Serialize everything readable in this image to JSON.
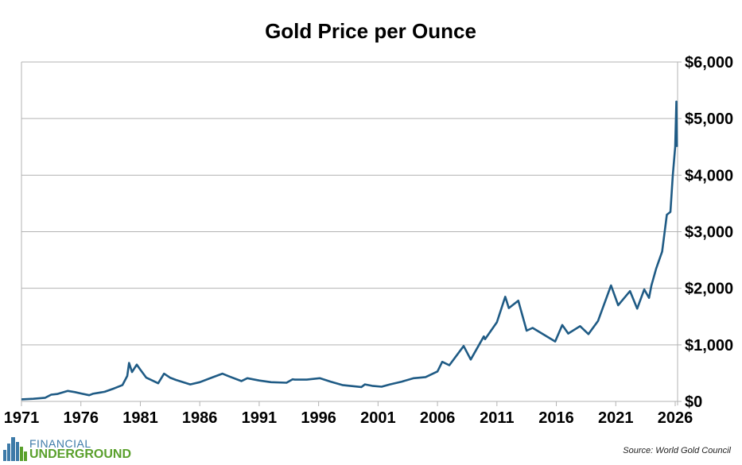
{
  "chart_data": {
    "type": "line",
    "title": "Gold Price per Ounce",
    "xlabel": "",
    "ylabel": "",
    "xlim": [
      1971,
      2026
    ],
    "ylim": [
      0,
      6000
    ],
    "x_ticks": [
      "1971",
      "1976",
      "1981",
      "1986",
      "1991",
      "1996",
      "2001",
      "2006",
      "2011",
      "2016",
      "2021",
      "2026"
    ],
    "y_ticks": [
      "$0",
      "$1,000",
      "$2,000",
      "$3,000",
      "$4,000",
      "$5,000",
      "$6,000"
    ],
    "y_axis_side": "right",
    "grid": "horizontal",
    "legend": "none",
    "line_color": "#1f5b85",
    "series": [
      {
        "x": [
          1971.0,
          1972.0,
          1973.0,
          1973.5,
          1974.0,
          1974.9,
          1975.5,
          1976.0,
          1976.7,
          1977.0,
          1978.0,
          1978.8,
          1979.5,
          1979.9,
          1980.05,
          1980.3,
          1980.7,
          1981.0,
          1981.5,
          1982.5,
          1983.0,
          1983.5,
          1984.0,
          1985.2,
          1986.0,
          1987.0,
          1987.9,
          1988.5,
          1989.5,
          1990.0,
          1991.0,
          1992.0,
          1993.3,
          1993.8,
          1994.0,
          1995.0,
          1996.1,
          1997.0,
          1998.0,
          1999.6,
          1999.9,
          2000.5,
          2001.3,
          2002.0,
          2003.0,
          2004.0,
          2005.0,
          2006.0,
          2006.4,
          2007.0,
          2008.2,
          2008.8,
          2009.9,
          2010.0,
          2011.0,
          2011.7,
          2012.0,
          2012.8,
          2013.5,
          2014.0,
          2015.9,
          2016.5,
          2017.0,
          2018.0,
          2018.7,
          2019.5,
          2020.6,
          2021.2,
          2021.6,
          2022.2,
          2022.8,
          2023.4,
          2023.8,
          2024.0,
          2024.4,
          2024.9,
          2025.3,
          2025.6,
          2025.8,
          2026.0,
          2026.1,
          2026.15
        ],
        "y": [
          37,
          46,
          65,
          120,
          130,
          185,
          165,
          140,
          110,
          135,
          170,
          230,
          290,
          450,
          680,
          520,
          650,
          560,
          420,
          320,
          490,
          420,
          380,
          300,
          340,
          420,
          490,
          440,
          360,
          410,
          370,
          340,
          330,
          390,
          385,
          385,
          410,
          350,
          290,
          255,
          300,
          275,
          260,
          300,
          350,
          410,
          430,
          530,
          700,
          640,
          980,
          740,
          1150,
          1100,
          1400,
          1850,
          1650,
          1780,
          1250,
          1300,
          1060,
          1350,
          1200,
          1330,
          1190,
          1420,
          2050,
          1700,
          1800,
          1950,
          1640,
          1980,
          1830,
          2050,
          2350,
          2650,
          3300,
          3350,
          4000,
          4500,
          5300,
          4500
        ]
      }
    ]
  },
  "source": "Source: World Gold Council",
  "logo": {
    "line1": "FINANCIAL",
    "line2": "UNDERGROUND",
    "colors": {
      "blue": "#3d7aa8",
      "green": "#5aa02c"
    }
  }
}
